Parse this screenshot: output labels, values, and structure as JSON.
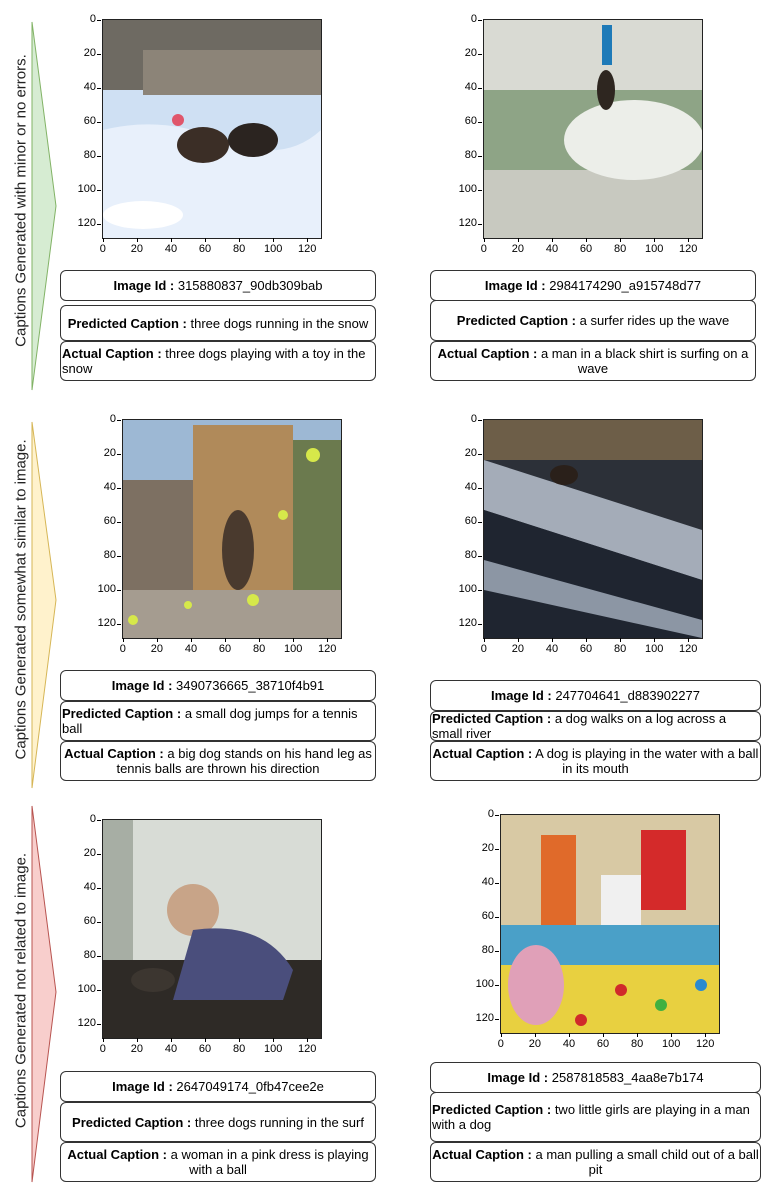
{
  "colors": {
    "green_fill": "#d6ecd2",
    "green_stroke": "#82b366",
    "yellow_fill": "#fff2cc",
    "yellow_stroke": "#d6b656",
    "red_fill": "#f8cecc",
    "red_stroke": "#b85450"
  },
  "rows": [
    {
      "label": "Captions Generated with minor or no errors.",
      "cells": [
        {
          "image_id_label": "Image Id :",
          "image_id": "315880837_90db309bab",
          "predicted_label": "Predicted Caption :",
          "predicted": "three dogs running in the snow",
          "actual_label": "Actual Caption :",
          "actual": "three dogs playing with a toy in the snow",
          "image_desc_icon": "photo-two-dogs-snow"
        },
        {
          "image_id_label": "Image Id :",
          "image_id": "2984174290_a915748d77",
          "predicted_label": "Predicted Caption :",
          "predicted": "a surfer rides up the wave",
          "actual_label": "Actual Caption :",
          "actual": " a man in a black shirt is surfing on a wave",
          "image_desc_icon": "photo-surfer"
        }
      ]
    },
    {
      "label": "Captions Generated somewhat similar to image.",
      "cells": [
        {
          "image_id_label": "Image Id :",
          "image_id": "3490736665_38710f4b91",
          "predicted_label": "Predicted Caption :",
          "predicted": "a small dog jumps for a tennis ball",
          "actual_label": "Actual Caption :",
          "actual": "a big dog stands on his hand leg as tennis balls are thrown his direction",
          "image_desc_icon": "photo-dog-tennis-balls"
        },
        {
          "image_id_label": "Image Id :",
          "image_id": "247704641_d883902277",
          "predicted_label": "Predicted Caption :",
          "predicted": "a dog walks on a log across a small river",
          "actual_label": "Actual Caption :",
          "actual": "A dog is playing in the water with a ball in its mouth",
          "image_desc_icon": "photo-dog-log-river"
        }
      ]
    },
    {
      "label": "Captions Generated not related to image.",
      "cells": [
        {
          "image_id_label": "Image Id :",
          "image_id": "2647049174_0fb47cee2e",
          "predicted_label": "Predicted Caption :",
          "predicted": "three dogs running in the surf",
          "actual_label": "Actual Caption :",
          "actual": "a woman in a pink dress is playing with a ball",
          "image_desc_icon": "photo-child-crouching"
        },
        {
          "image_id_label": "Image Id :",
          "image_id": "2587818583_4aa8e7b174",
          "predicted_label": "Predicted Caption :",
          "predicted": "two little girls are playing in a man with a dog",
          "actual_label": "Actual Caption :",
          "actual": "a man pulling a small child out of a ball pit",
          "image_desc_icon": "photo-ball-pit"
        }
      ]
    }
  ],
  "axis": {
    "y_ticks": [
      "0",
      "20",
      "40",
      "60",
      "80",
      "100",
      "120"
    ],
    "x_ticks": [
      "0",
      "20",
      "40",
      "60",
      "80",
      "100",
      "120"
    ]
  }
}
